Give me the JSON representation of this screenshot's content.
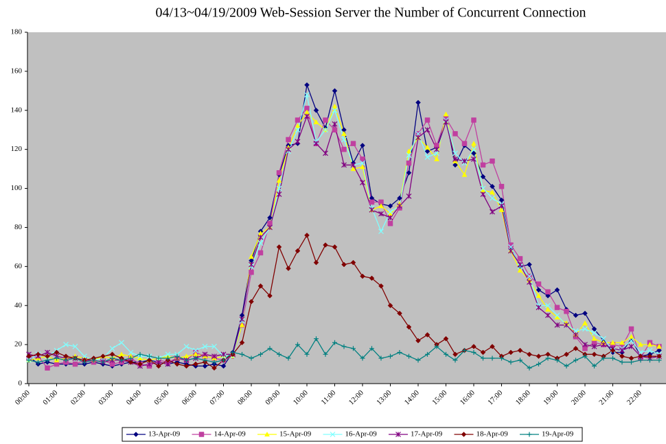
{
  "chart_data": {
    "type": "line",
    "title": "04/13~04/19/2009 Web-Session Server the Number of Concurrent Connection",
    "categories": [
      "00:00",
      null,
      null,
      "01:00",
      null,
      null,
      "02:00",
      null,
      null,
      "03:00",
      null,
      null,
      "04:00",
      null,
      null,
      "05:00",
      null,
      null,
      "06:00",
      null,
      null,
      "07:00",
      null,
      null,
      "08:00",
      null,
      null,
      "09:00",
      null,
      null,
      "10:00",
      null,
      null,
      "11:00",
      null,
      null,
      "12:00",
      null,
      null,
      "13:00",
      null,
      null,
      "14:00",
      null,
      null,
      "15:00",
      null,
      null,
      "16:00",
      null,
      null,
      "17:00",
      null,
      null,
      "18:00",
      null,
      null,
      "19:00",
      null,
      null,
      "20:00",
      null,
      null,
      "21:00",
      null,
      null,
      "22:00",
      null,
      null
    ],
    "ylim": [
      0,
      180
    ],
    "yticks": [
      0,
      20,
      40,
      60,
      80,
      100,
      120,
      140,
      160,
      180
    ],
    "series": [
      {
        "name": "13-Apr-09",
        "color": "#000080",
        "marker": "diamond",
        "values": [
          14,
          10,
          11,
          10,
          10,
          10,
          10,
          11,
          10,
          9,
          10,
          11,
          11,
          12,
          11,
          10,
          11,
          10,
          9,
          9,
          10,
          9,
          16,
          35,
          63,
          78,
          85,
          107,
          122,
          123,
          153,
          140,
          131,
          150,
          130,
          113,
          122,
          95,
          92,
          91,
          95,
          108,
          144,
          119,
          121,
          136,
          112,
          122,
          118,
          106,
          101,
          94,
          70,
          60,
          61,
          48,
          45,
          48,
          38,
          35,
          36,
          28,
          22,
          16,
          16,
          23,
          14,
          15,
          17
        ]
      },
      {
        "name": "14-Apr-09",
        "color": "#c040a0",
        "marker": "square",
        "values": [
          13,
          14,
          8,
          10,
          11,
          10,
          12,
          11,
          12,
          10,
          11,
          13,
          10,
          9,
          12,
          11,
          13,
          12,
          16,
          14,
          13,
          12,
          14,
          30,
          57,
          67,
          82,
          108,
          125,
          135,
          141,
          123,
          135,
          130,
          120,
          123,
          115,
          93,
          93,
          82,
          90,
          113,
          128,
          135,
          122,
          136,
          128,
          123,
          135,
          112,
          114,
          101,
          71,
          64,
          55,
          51,
          47,
          39,
          37,
          24,
          18,
          21,
          20,
          20,
          19,
          28,
          13,
          21,
          19
        ]
      },
      {
        "name": "15-Apr-09",
        "color": "#ffff00",
        "marker": "triangle",
        "values": [
          12,
          13,
          14,
          12,
          13,
          14,
          13,
          12,
          14,
          13,
          15,
          14,
          13,
          12,
          13,
          14,
          13,
          14,
          15,
          14,
          13,
          14,
          14,
          30,
          65,
          77,
          80,
          104,
          121,
          132,
          139,
          134,
          130,
          142,
          128,
          110,
          111,
          89,
          91,
          87,
          92,
          119,
          126,
          121,
          115,
          138,
          114,
          107,
          123,
          99,
          98,
          89,
          68,
          58,
          53,
          45,
          38,
          34,
          31,
          25,
          31,
          23,
          21,
          21,
          21,
          24,
          20,
          20,
          19
        ]
      },
      {
        "name": "16-Apr-09",
        "color": "#80ffff",
        "marker": "x",
        "values": [
          12,
          15,
          14,
          17,
          20,
          19,
          14,
          12,
          13,
          18,
          21,
          16,
          14,
          14,
          13,
          15,
          15,
          19,
          17,
          19,
          19,
          14,
          14,
          32,
          60,
          72,
          80,
          100,
          119,
          130,
          148,
          124,
          130,
          140,
          125,
          112,
          113,
          90,
          78,
          88,
          91,
          117,
          128,
          116,
          118,
          135,
          118,
          113,
          120,
          100,
          95,
          92,
          70,
          60,
          55,
          40,
          40,
          35,
          30,
          27,
          28,
          26,
          23,
          17,
          18,
          22,
          16,
          17,
          15
        ]
      },
      {
        "name": "17-Apr-09",
        "color": "#800080",
        "marker": "asterisk",
        "values": [
          15,
          14,
          16,
          14,
          13,
          13,
          12,
          12,
          11,
          12,
          12,
          11,
          9,
          10,
          11,
          10,
          13,
          12,
          13,
          15,
          14,
          15,
          15,
          33,
          61,
          75,
          80,
          97,
          120,
          124,
          137,
          123,
          118,
          133,
          112,
          112,
          103,
          89,
          87,
          85,
          91,
          96,
          126,
          130,
          120,
          134,
          115,
          114,
          115,
          97,
          88,
          91,
          68,
          61,
          52,
          39,
          35,
          30,
          30,
          25,
          20,
          19,
          20,
          18,
          17,
          19,
          14,
          13,
          14
        ]
      },
      {
        "name": "18-Apr-09",
        "color": "#800000",
        "marker": "diamond",
        "values": [
          14,
          15,
          14,
          16,
          14,
          13,
          12,
          13,
          14,
          15,
          13,
          11,
          10,
          12,
          9,
          12,
          10,
          9,
          10,
          11,
          8,
          12,
          15,
          21,
          42,
          50,
          45,
          70,
          59,
          68,
          76,
          62,
          71,
          70,
          61,
          62,
          55,
          54,
          50,
          40,
          36,
          29,
          22,
          25,
          20,
          23,
          15,
          17,
          19,
          16,
          19,
          14,
          16,
          17,
          15,
          14,
          15,
          13,
          15,
          18,
          15,
          15,
          14,
          17,
          14,
          13,
          14,
          14,
          14
        ]
      },
      {
        "name": "19-Apr-09",
        "color": "#008080",
        "marker": "plus",
        "values": [
          12,
          11,
          12,
          13,
          12,
          13,
          11,
          12,
          11,
          13,
          12,
          13,
          15,
          14,
          13,
          13,
          14,
          12,
          13,
          12,
          11,
          12,
          16,
          15,
          13,
          15,
          18,
          15,
          13,
          20,
          15,
          23,
          15,
          21,
          19,
          18,
          13,
          18,
          13,
          14,
          16,
          14,
          12,
          15,
          19,
          15,
          12,
          17,
          16,
          13,
          13,
          13,
          11,
          12,
          8,
          10,
          13,
          12,
          9,
          12,
          14,
          9,
          13,
          13,
          11,
          11,
          12,
          12,
          12
        ]
      }
    ]
  }
}
